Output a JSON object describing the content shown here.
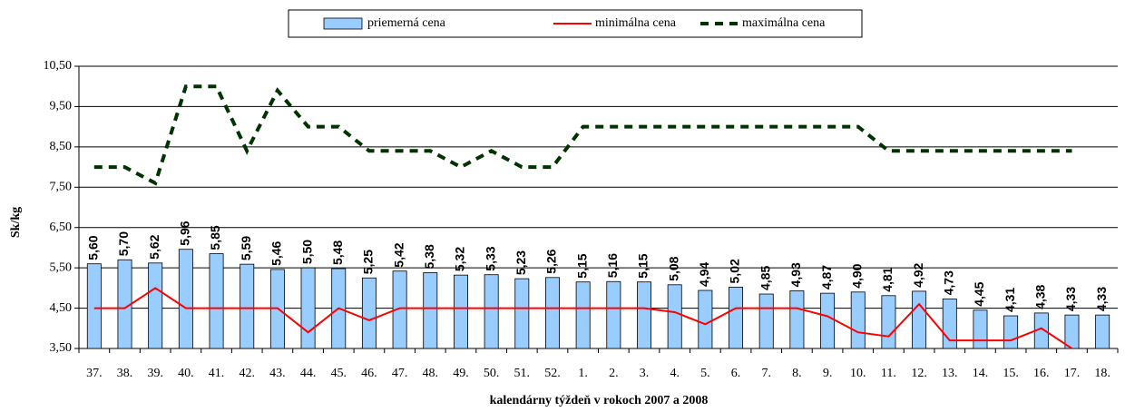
{
  "chart_data": {
    "type": "bar",
    "y_label": "Sk/kg",
    "x_label": "kalendárny týždeň v rokoch 2007 a 2008",
    "categories": [
      "37.",
      "38.",
      "39.",
      "40.",
      "41.",
      "42.",
      "43.",
      "44.",
      "45.",
      "46.",
      "47.",
      "48.",
      "49.",
      "50.",
      "51.",
      "52.",
      "1.",
      "2.",
      "3.",
      "4.",
      "5.",
      "6.",
      "7.",
      "8.",
      "9.",
      "10.",
      "11.",
      "12.",
      "13.",
      "14.",
      "15.",
      "16.",
      "17.",
      "18."
    ],
    "series": [
      {
        "name": "priemerná cena",
        "type": "bar",
        "color": "#99ccff",
        "values": [
          5.6,
          5.7,
          5.62,
          5.96,
          5.85,
          5.59,
          5.46,
          5.5,
          5.48,
          5.25,
          5.42,
          5.38,
          5.32,
          5.33,
          5.23,
          5.26,
          5.15,
          5.16,
          5.15,
          5.08,
          4.94,
          5.02,
          4.85,
          4.93,
          4.87,
          4.9,
          4.81,
          4.92,
          4.73,
          4.45,
          4.31,
          4.38,
          4.33,
          4.33
        ],
        "value_labels": [
          "5,60",
          "5,70",
          "5,62",
          "5,96",
          "5,85",
          "5,59",
          "5,46",
          "5,50",
          "5,48",
          "5,25",
          "5,42",
          "5,38",
          "5,32",
          "5,33",
          "5,23",
          "5,26",
          "5,15",
          "5,16",
          "5,15",
          "5,08",
          "4,94",
          "5,02",
          "4,85",
          "4,93",
          "4,87",
          "4,90",
          "4,81",
          "4,92",
          "4,73",
          "4,45",
          "4,31",
          "4,38",
          "4,33",
          "4,33"
        ]
      },
      {
        "name": "minimálna cena",
        "type": "line",
        "color": "#ff0000",
        "line_style": "solid",
        "values": [
          4.5,
          4.5,
          5.0,
          4.5,
          4.5,
          4.5,
          4.5,
          3.9,
          4.5,
          4.2,
          4.5,
          4.5,
          4.5,
          4.5,
          4.5,
          4.5,
          4.5,
          4.5,
          4.5,
          4.4,
          4.1,
          4.5,
          4.5,
          4.5,
          4.3,
          3.9,
          3.8,
          4.6,
          3.7,
          3.7,
          3.7,
          4.0,
          3.5,
          null
        ]
      },
      {
        "name": "maximálna cena",
        "type": "line",
        "color": "#003300",
        "line_style": "dashed",
        "values": [
          8.0,
          8.0,
          7.6,
          10.0,
          10.0,
          8.4,
          9.9,
          9.0,
          9.0,
          8.4,
          8.4,
          8.4,
          8.0,
          8.4,
          8.0,
          8.0,
          9.0,
          9.0,
          9.0,
          9.0,
          9.0,
          9.0,
          9.0,
          9.0,
          9.0,
          9.0,
          8.4,
          8.4,
          8.4,
          8.4,
          8.4,
          8.4,
          8.4,
          null
        ]
      }
    ],
    "ylim": [
      3.5,
      10.5
    ],
    "yticks": [
      {
        "value": 3.5,
        "label": "3,50"
      },
      {
        "value": 4.5,
        "label": "4,50"
      },
      {
        "value": 5.5,
        "label": "5,50"
      },
      {
        "value": 6.5,
        "label": "6,50"
      },
      {
        "value": 7.5,
        "label": "7,50"
      },
      {
        "value": 8.5,
        "label": "8,50"
      },
      {
        "value": 9.5,
        "label": "9,50"
      },
      {
        "value": 10.5,
        "label": "10,50"
      }
    ],
    "grid": true,
    "legend": "top"
  }
}
